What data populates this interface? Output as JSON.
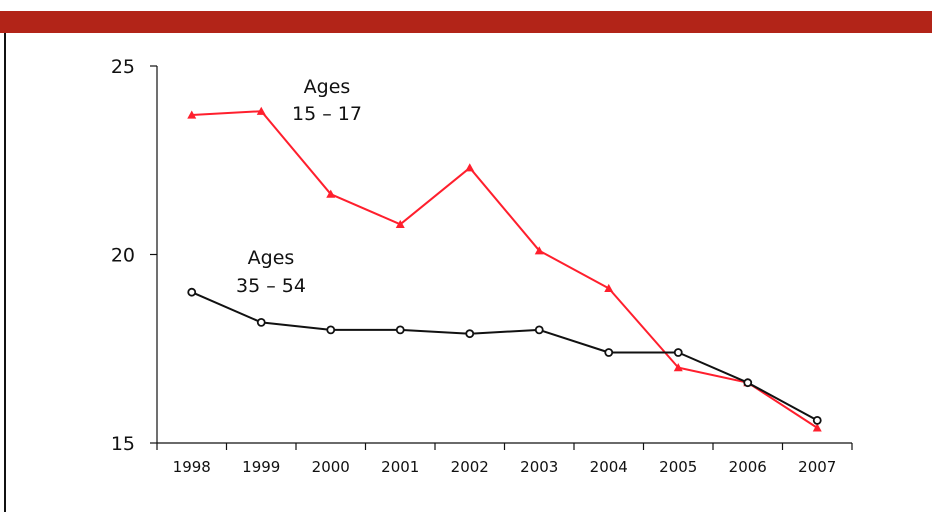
{
  "colors": {
    "header_bar": "#b22418",
    "axis": "#111111",
    "series_15_17": "#ff1f2d",
    "series_35_54": "#111111"
  },
  "chart_data": {
    "type": "line",
    "title": "",
    "xlabel": "",
    "ylabel": "",
    "categories": [
      "1998",
      "1999",
      "2000",
      "2001",
      "2002",
      "2003",
      "2004",
      "2005",
      "2006",
      "2007"
    ],
    "ylim": [
      15,
      25
    ],
    "yticks": [
      "15",
      "20",
      "25"
    ],
    "grid": false,
    "legend": "none",
    "series": [
      {
        "values": [
          23.7,
          23.8,
          21.6,
          20.8,
          22.3,
          20.1,
          19.1,
          17.0,
          16.6,
          15.4
        ],
        "color": "#ff1f2d",
        "marker": "triangle"
      },
      {
        "values": [
          19.0,
          18.2,
          18.0,
          18.0,
          17.9,
          18.0,
          17.4,
          17.4,
          16.6,
          15.6
        ],
        "color": "#111111",
        "marker": "circle"
      }
    ],
    "annotations": [
      {
        "line1": "Ages",
        "line2": "15 – 17"
      },
      {
        "line1": "Ages",
        "line2": "35 – 54"
      }
    ]
  }
}
